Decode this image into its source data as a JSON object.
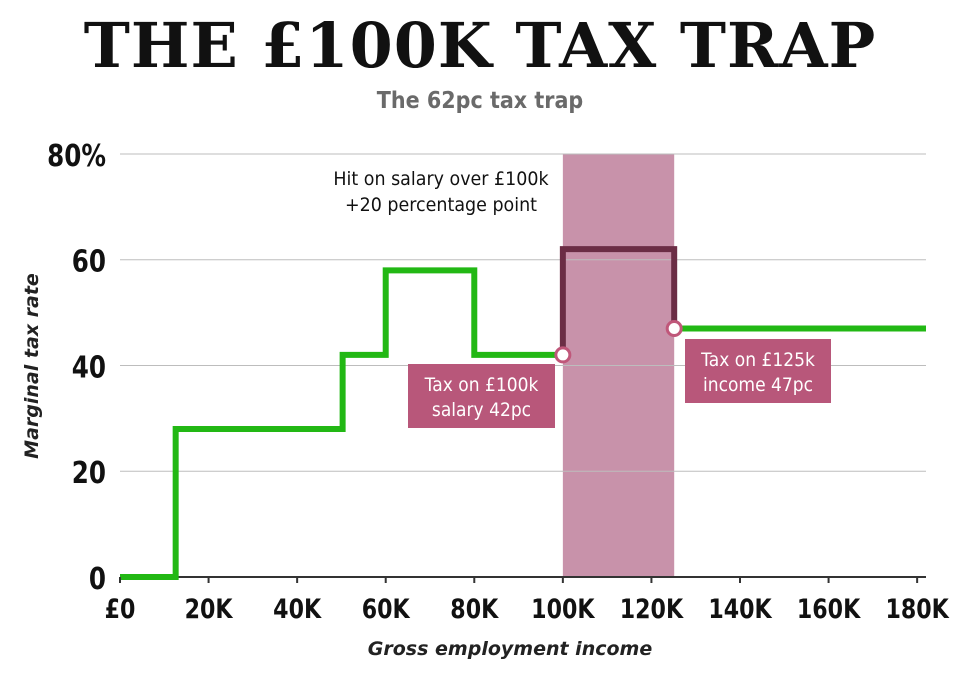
{
  "title": "THE £100K TAX TRAP",
  "subtitle": "The 62pc tax trap",
  "chart_data": {
    "type": "line",
    "step": true,
    "xlabel": "Gross employment income",
    "ylabel": "Marginal tax rate",
    "xlim": [
      0,
      182000
    ],
    "ylim": [
      0,
      80
    ],
    "x_ticks": [
      0,
      20000,
      40000,
      60000,
      80000,
      100000,
      120000,
      140000,
      160000,
      180000
    ],
    "x_tick_labels": [
      "£0",
      "20K",
      "40K",
      "60K",
      "80K",
      "100K",
      "120K",
      "140K",
      "160K",
      "180K"
    ],
    "y_ticks": [
      0,
      20,
      40,
      60,
      80
    ],
    "y_tick_labels": [
      "0",
      "20",
      "40",
      "60",
      "80%"
    ],
    "grid": "horizontal",
    "series": [
      {
        "color": "#22b814",
        "points": [
          [
            0,
            0
          ],
          [
            12570,
            0
          ],
          [
            12570,
            28
          ],
          [
            50270,
            28
          ],
          [
            50270,
            42
          ],
          [
            60000,
            42
          ],
          [
            60000,
            58
          ],
          [
            80000,
            58
          ],
          [
            80000,
            42
          ],
          [
            100000,
            42
          ]
        ]
      },
      {
        "color": "#6b2d45",
        "points": [
          [
            100000,
            42
          ],
          [
            100000,
            62
          ],
          [
            125140,
            62
          ],
          [
            125140,
            47
          ]
        ]
      },
      {
        "color": "#22b814",
        "points": [
          [
            125140,
            47
          ],
          [
            182000,
            47
          ]
        ]
      }
    ],
    "shaded_band": {
      "x": [
        100000,
        125140
      ],
      "color": "#c892aa"
    },
    "markers": [
      {
        "x": 100000,
        "y": 42,
        "color": "#c0577a"
      },
      {
        "x": 125140,
        "y": 47,
        "color": "#c0577a"
      }
    ],
    "annotations": [
      {
        "lines": [
          "Hit on salary over £100k",
          "+20 percentage point"
        ]
      },
      {
        "lines": [
          "Tax on £100k",
          "salary 42pc"
        ],
        "color": "#b8577a"
      },
      {
        "lines": [
          "Tax on £125k",
          "income 47pc"
        ],
        "color": "#b8577a"
      }
    ]
  }
}
